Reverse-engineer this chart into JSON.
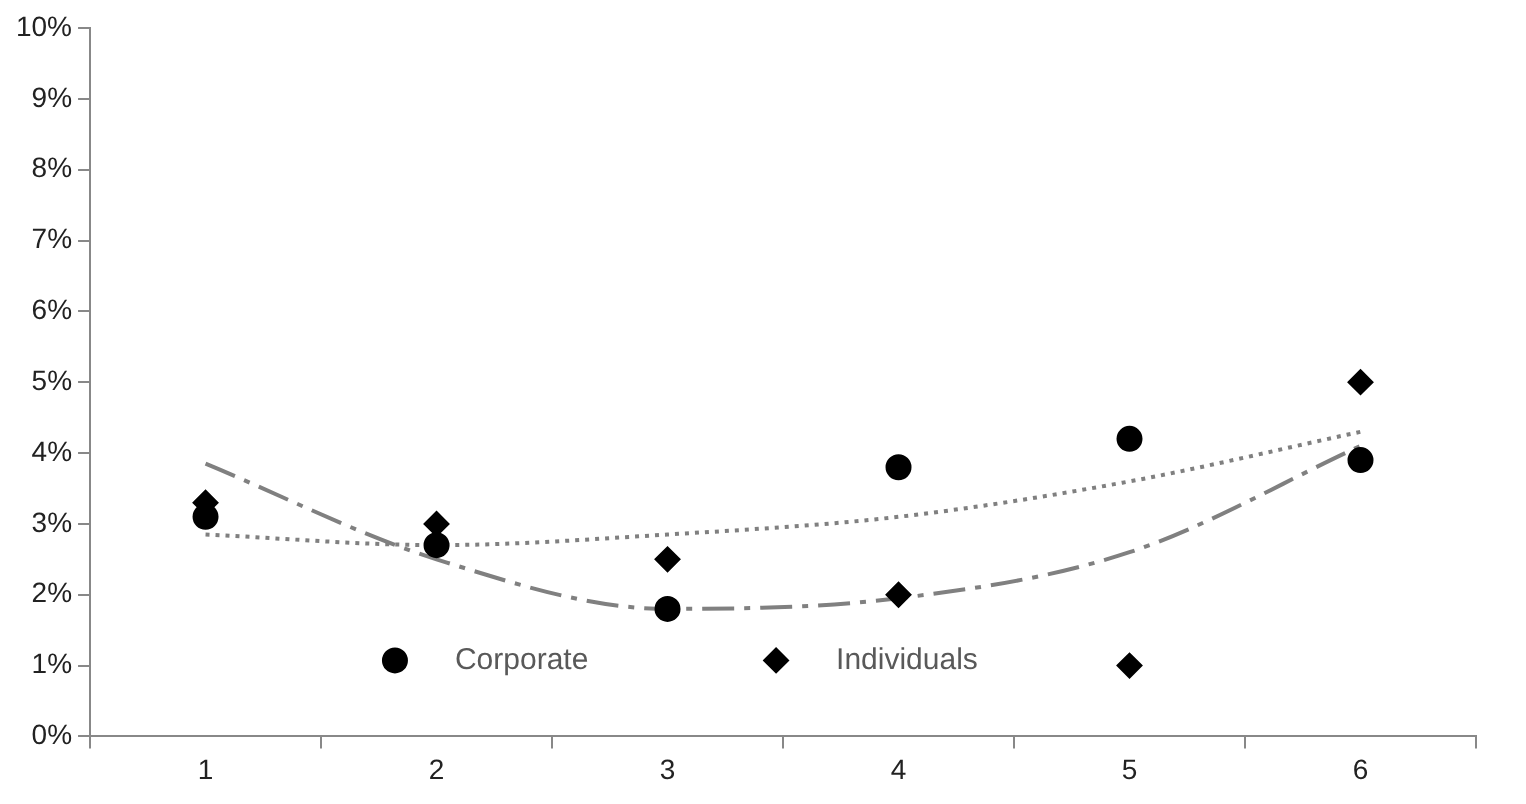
{
  "chart_data": {
    "type": "scatter",
    "categories": [
      "1",
      "2",
      "3",
      "4",
      "5",
      "6"
    ],
    "series": [
      {
        "name": "Corporate",
        "marker": "circle",
        "color": "#000000",
        "values": [
          3.1,
          2.7,
          1.8,
          3.8,
          4.2,
          3.9
        ]
      },
      {
        "name": "Individuals",
        "marker": "diamond",
        "color": "#000000",
        "values": [
          3.3,
          3.0,
          2.5,
          2.0,
          1.0,
          5.0
        ]
      },
      {
        "type": "line",
        "line_style": "dotted",
        "marker": "none",
        "color": "#808080",
        "values": [
          2.85,
          2.7,
          2.85,
          3.1,
          3.6,
          4.3
        ]
      },
      {
        "type": "line",
        "line_style": "dashed",
        "marker": "none",
        "color": "#808080",
        "values": [
          3.85,
          2.5,
          1.8,
          1.95,
          2.6,
          4.1
        ]
      }
    ],
    "ylim": [
      0,
      10
    ],
    "yticks": [
      {
        "value": 0,
        "label": "0%"
      },
      {
        "value": 1,
        "label": "1%"
      },
      {
        "value": 2,
        "label": "2%"
      },
      {
        "value": 3,
        "label": "3%"
      },
      {
        "value": 4,
        "label": "4%"
      },
      {
        "value": 5,
        "label": "5%"
      },
      {
        "value": 6,
        "label": "6%"
      },
      {
        "value": 7,
        "label": "7%"
      },
      {
        "value": 8,
        "label": "8%"
      },
      {
        "value": 9,
        "label": "9%"
      },
      {
        "value": 10,
        "label": "10%"
      }
    ],
    "grid": false,
    "legend": "bottom"
  }
}
